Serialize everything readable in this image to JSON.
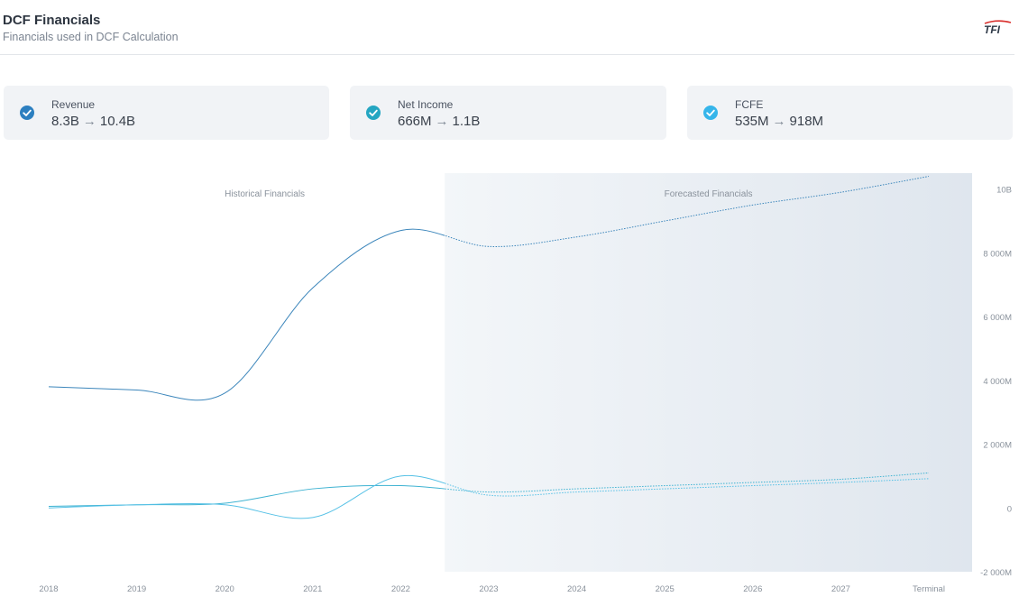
{
  "header": {
    "title": "DCF Financials",
    "subtitle": "Financials used in DCF Calculation",
    "logo_text": "TFI"
  },
  "metrics": [
    {
      "label": "Revenue",
      "from": "8.3B",
      "to": "10.4B",
      "color": "#2c7fc0"
    },
    {
      "label": "Net Income",
      "from": "666M",
      "to": "1.1B",
      "color": "#25a6c2"
    },
    {
      "label": "FCFE",
      "from": "535M",
      "to": "918M",
      "color": "#36b5ea"
    }
  ],
  "colors": {
    "revenue": "#3c86bb",
    "net_income": "#3fb3d2",
    "fcfe": "#56c1e6",
    "forecast_bg_start": "#f3f6f9",
    "forecast_bg_end": "#dfe6ee",
    "axis_text": "#8a929c"
  },
  "chart_data": {
    "type": "line",
    "title": "",
    "region_labels": {
      "historical": "Historical Financials",
      "forecasted": "Forecasted Financials"
    },
    "categories": [
      "2018",
      "2019",
      "2020",
      "2021",
      "2022",
      "2023",
      "2024",
      "2025",
      "2026",
      "2027",
      "Terminal"
    ],
    "forecast_start_index": 4.5,
    "ylim": [
      -2000,
      10500
    ],
    "yticks": [
      -2000,
      0,
      2000,
      4000,
      6000,
      8000,
      10000
    ],
    "ytick_labels": [
      "-2 000M",
      "0",
      "2 000M",
      "4 000M",
      "6 000M",
      "8 000M",
      "10B"
    ],
    "series": [
      {
        "name": "Revenue",
        "values": [
          3800,
          3700,
          3600,
          6900,
          8700,
          8200,
          8500,
          9000,
          9500,
          9900,
          10400
        ]
      },
      {
        "name": "Net Income",
        "values": [
          50,
          100,
          150,
          600,
          700,
          500,
          600,
          700,
          800,
          900,
          1100
        ]
      },
      {
        "name": "FCFE",
        "values": [
          0,
          100,
          100,
          -300,
          1000,
          400,
          500,
          600,
          700,
          800,
          918
        ]
      }
    ],
    "legend": "top"
  }
}
